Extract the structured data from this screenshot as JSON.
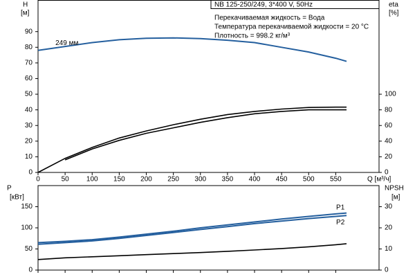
{
  "chart_data": [
    {
      "type": "line",
      "header": "NB 125-250/249, 3*400 V, 50Hz",
      "annotations": [
        "Перекачиваемая жидкость = Вода",
        "Температура перекачиваемой жидкости = 20 °C",
        "Плотность = 998.2 кг/м³"
      ],
      "y_label": "H",
      "y_unit": "[м]",
      "y2_label": "eta",
      "y2_unit": "[%]",
      "x_label": "Q [м³/ч]",
      "x": [
        0,
        50,
        100,
        150,
        200,
        250,
        300,
        350,
        400,
        450,
        500,
        550,
        570
      ],
      "xlim": [
        0,
        630
      ],
      "xticks": [
        0,
        50,
        100,
        150,
        200,
        250,
        300,
        350,
        400,
        450,
        500,
        550
      ],
      "ylim": [
        0,
        110
      ],
      "yticks": [
        0,
        10,
        20,
        30,
        40,
        50,
        60,
        70,
        80,
        90
      ],
      "y2lim": [
        0,
        220
      ],
      "y2ticks": [
        0,
        20,
        40,
        60,
        80,
        100
      ],
      "series": [
        {
          "name": "249 мм",
          "color": "#245f9e",
          "values": [
            78,
            80.5,
            83,
            84.8,
            85.8,
            86,
            85.5,
            84.5,
            83,
            80,
            77,
            73,
            71
          ]
        },
        {
          "color": "#000000",
          "axis": "y2",
          "values": [
            0,
            18,
            32,
            44,
            53,
            61,
            68,
            74,
            78,
            81,
            83,
            83.5,
            83.5
          ]
        },
        {
          "color": "#000000",
          "axis": "y2",
          "values": [
            null,
            16,
            30,
            41,
            50,
            57,
            64,
            70,
            75,
            78,
            80,
            80,
            80
          ]
        }
      ]
    },
    {
      "type": "line",
      "y_label": "P",
      "y_unit": "[кВт]",
      "y2_label": "NPSH",
      "y2_unit": "[м]",
      "x": [
        0,
        50,
        100,
        150,
        200,
        250,
        300,
        350,
        400,
        450,
        500,
        550,
        570
      ],
      "xlim": [
        0,
        630
      ],
      "xticks": [
        0,
        50,
        100,
        150,
        200,
        250,
        300,
        350,
        400,
        450,
        500,
        550
      ],
      "ylim": [
        0,
        200
      ],
      "yticks": [
        0,
        50,
        100,
        150
      ],
      "y2lim": [
        0,
        40
      ],
      "y2ticks": [
        0,
        10,
        20,
        30
      ],
      "series": [
        {
          "name": "P1",
          "color": "#245f9e",
          "values": [
            65,
            68,
            72,
            78,
            85,
            92,
            100,
            107,
            114,
            121,
            127,
            133,
            135
          ]
        },
        {
          "name": "P2",
          "color": "#245f9e",
          "values": [
            61,
            65,
            69,
            75,
            82,
            89,
            96,
            103,
            110,
            116,
            122,
            127,
            129
          ]
        },
        {
          "color": "#000000",
          "axis": "y2",
          "values": [
            5,
            5.8,
            6.3,
            6.8,
            7.3,
            7.8,
            8.3,
            8.9,
            9.5,
            10.2,
            11,
            12,
            12.5
          ]
        }
      ]
    }
  ]
}
